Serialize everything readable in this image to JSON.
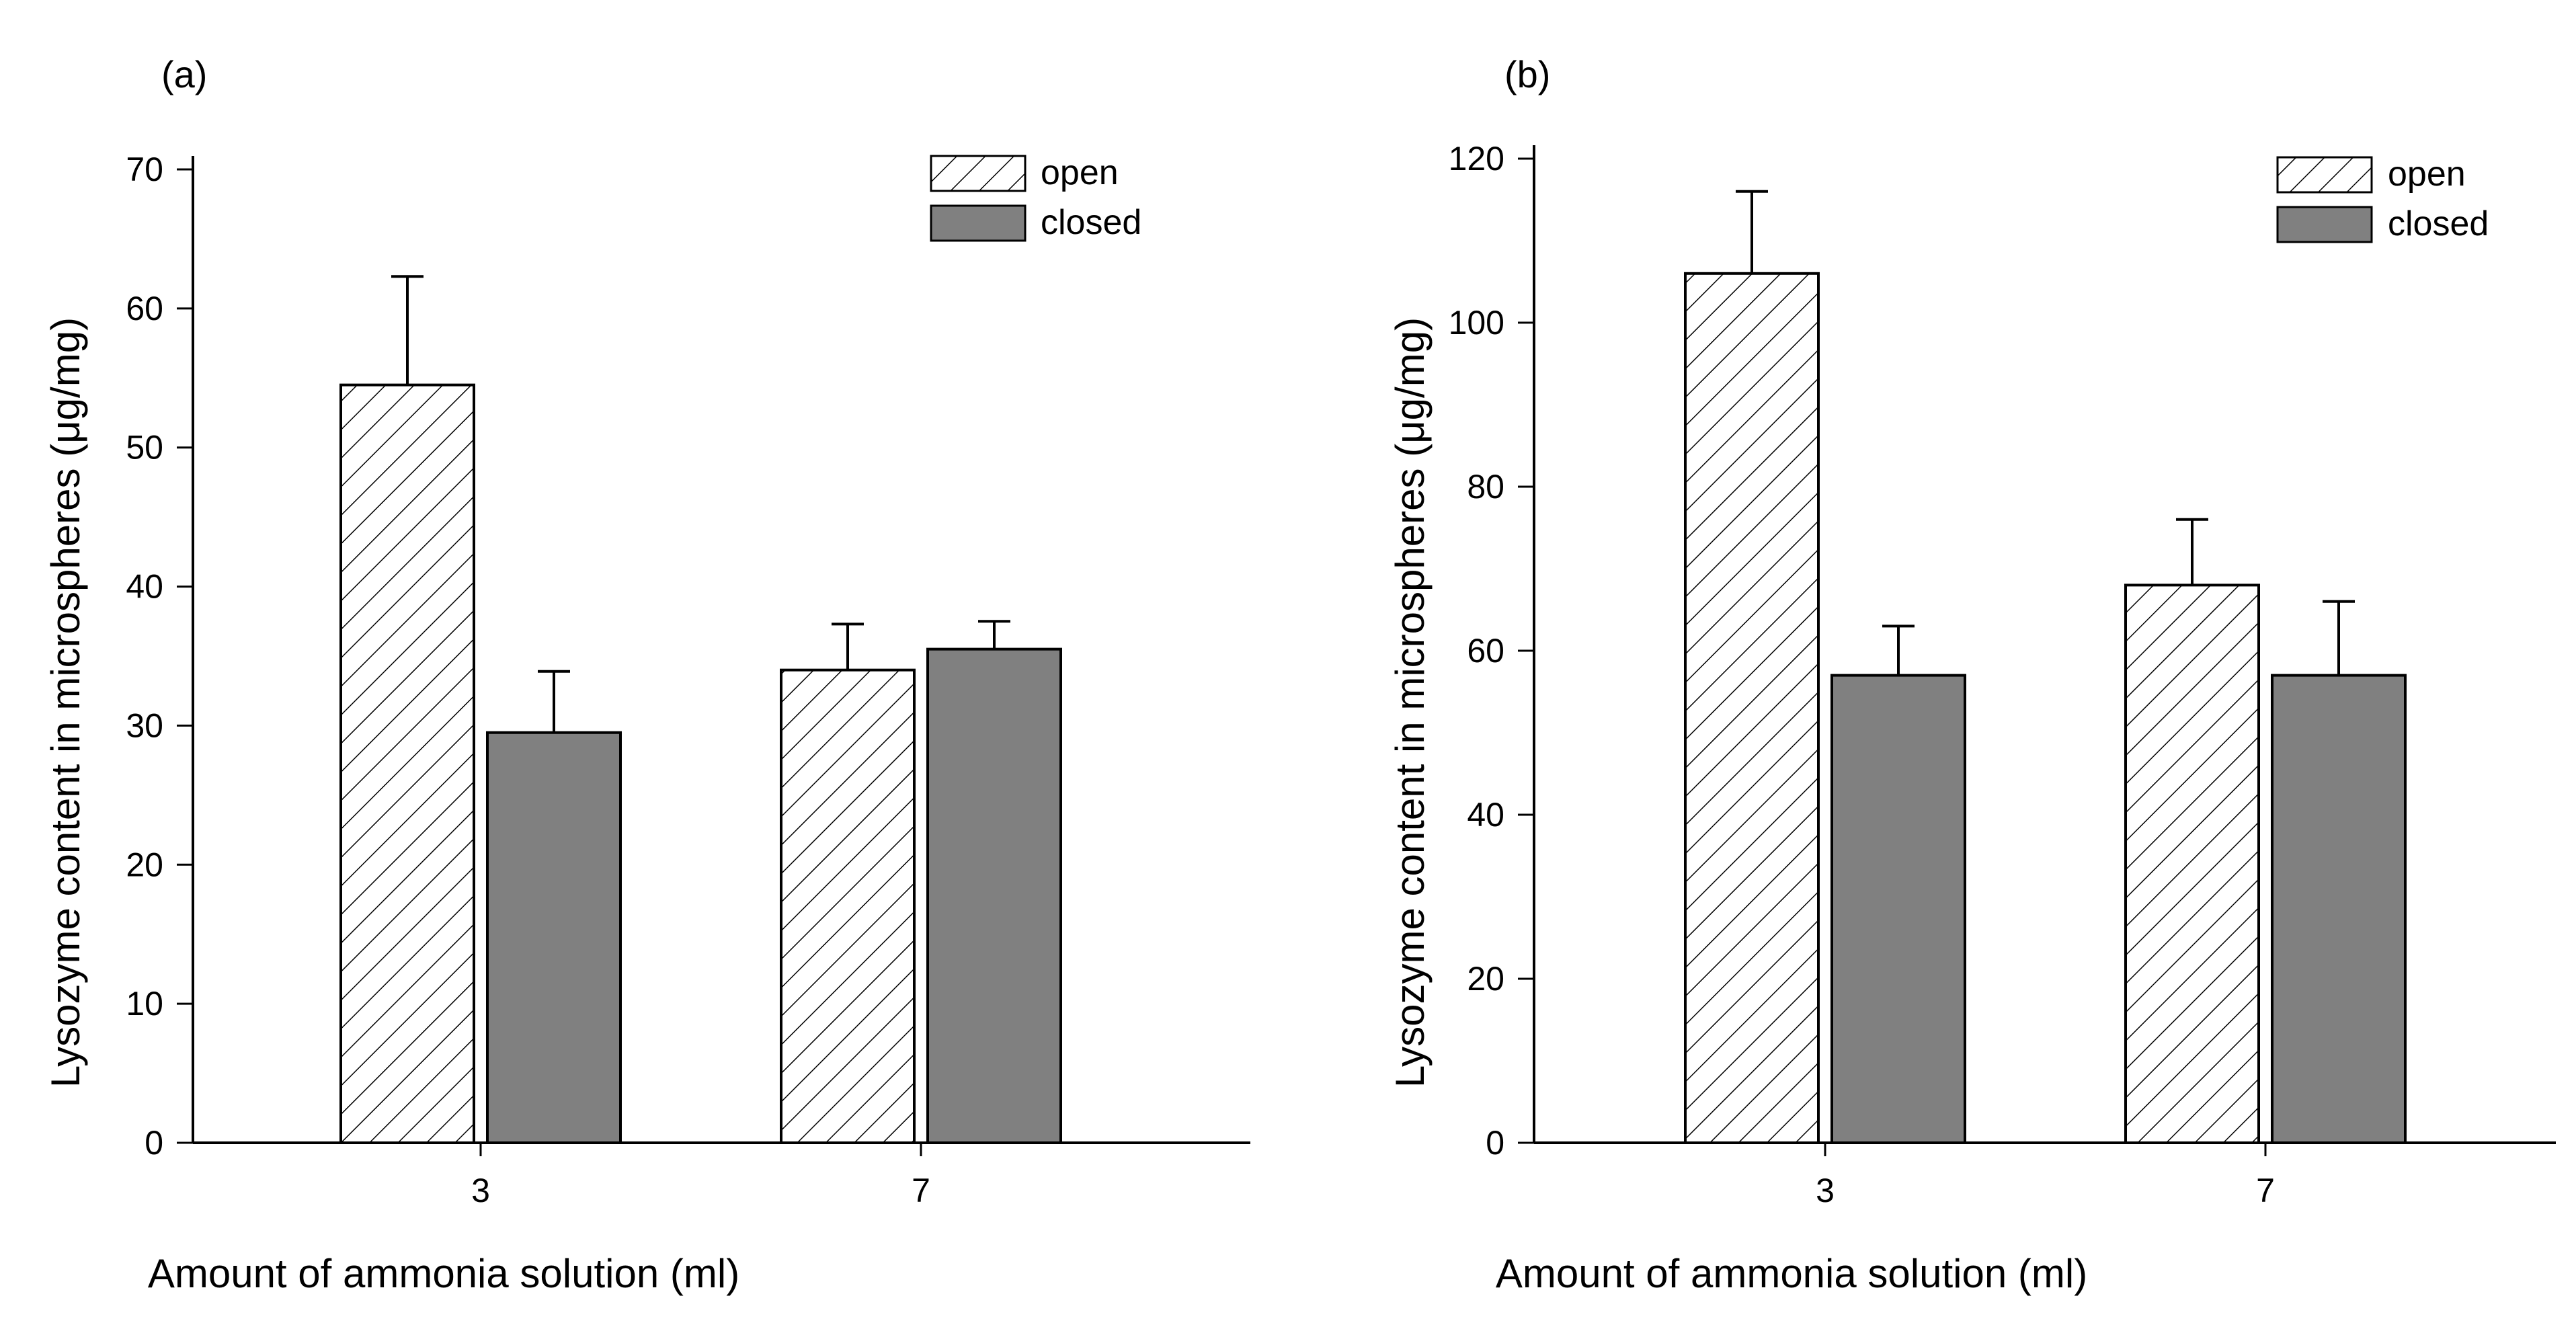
{
  "colors": {
    "axis": "#000000",
    "closed_fill": "#808080",
    "open_fill": "#ffffff",
    "hatch": "#000000"
  },
  "chart_data": [
    {
      "type": "bar",
      "panel_label": "(a)",
      "xlabel": "Amount of ammonia solution (ml)",
      "ylabel": "Lysozyme content in microspheres (μg/mg)",
      "ylim": [
        0,
        70
      ],
      "yticks": [
        0,
        10,
        20,
        30,
        40,
        50,
        60,
        70
      ],
      "categories": [
        "3",
        "7"
      ],
      "series": [
        {
          "name": "open",
          "style": "hatched",
          "values": [
            54.5,
            34
          ],
          "errors": [
            7.8,
            3.3
          ]
        },
        {
          "name": "closed",
          "style": "solid-gray",
          "values": [
            29.5,
            35.5
          ],
          "errors": [
            4.4,
            2.0
          ]
        }
      ],
      "legend": {
        "position": "top-right",
        "entries": [
          "open",
          "closed"
        ]
      }
    },
    {
      "type": "bar",
      "panel_label": "(b)",
      "xlabel": "Amount of ammonia solution (ml)",
      "ylabel": "Lysozyme content in microspheres (μg/mg)",
      "ylim": [
        0,
        120
      ],
      "yticks": [
        0,
        20,
        40,
        60,
        80,
        100,
        120
      ],
      "categories": [
        "3",
        "7"
      ],
      "series": [
        {
          "name": "open",
          "style": "hatched",
          "values": [
            106,
            68
          ],
          "errors": [
            10,
            8
          ]
        },
        {
          "name": "closed",
          "style": "solid-gray",
          "values": [
            57,
            57
          ],
          "errors": [
            6,
            9
          ]
        }
      ],
      "legend": {
        "position": "top-right",
        "entries": [
          "open",
          "closed"
        ]
      }
    }
  ]
}
